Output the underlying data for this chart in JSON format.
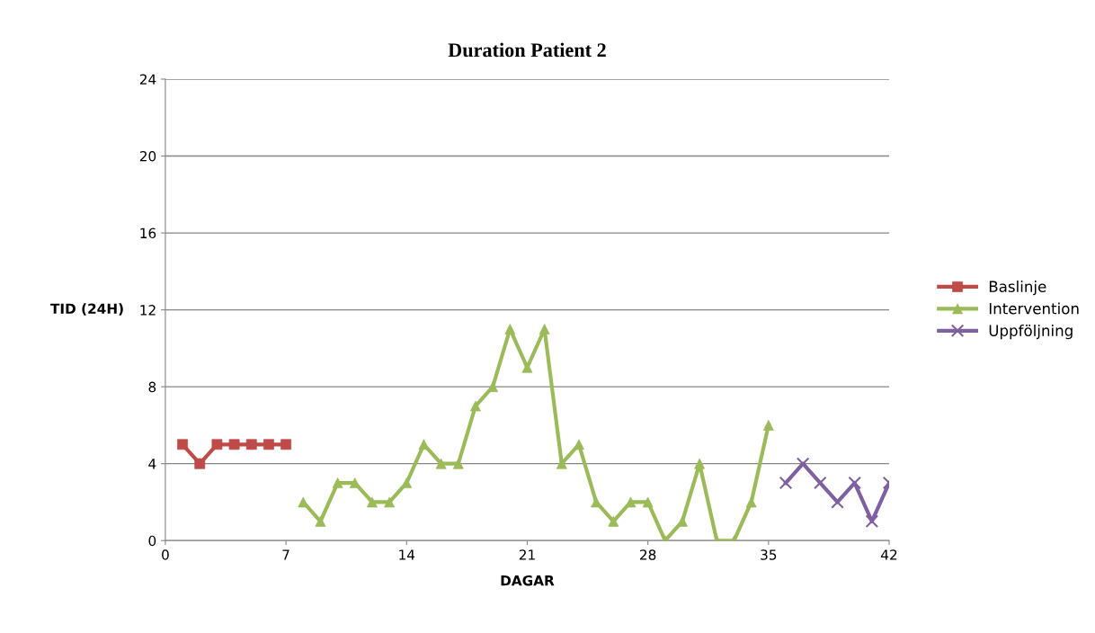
{
  "chart_data": {
    "type": "line",
    "title": "Duration Patient 2",
    "xlabel": "DAGAR",
    "ylabel": "TID (24H)",
    "xlim": [
      0,
      42
    ],
    "xticks": [
      0,
      7,
      14,
      21,
      28,
      35,
      42
    ],
    "ylim": [
      0,
      24
    ],
    "yticks": [
      0,
      4,
      8,
      12,
      16,
      20,
      24
    ],
    "grid": "y",
    "legend": "right",
    "series": [
      {
        "name": "Baslinje",
        "color": "#be4b48",
        "marker": "square",
        "x": [
          1,
          2,
          3,
          4,
          5,
          6,
          7
        ],
        "values": [
          5,
          4,
          5,
          5,
          5,
          5,
          5
        ]
      },
      {
        "name": "Intervention",
        "color": "#9bbb59",
        "marker": "triangle",
        "x": [
          8,
          9,
          10,
          11,
          12,
          13,
          14,
          15,
          16,
          17,
          18,
          19,
          20,
          21,
          22,
          23,
          24,
          25,
          26,
          27,
          28,
          29,
          30,
          31,
          32,
          33,
          34,
          35
        ],
        "values": [
          2,
          1,
          3,
          3,
          2,
          2,
          3,
          5,
          4,
          4,
          7,
          8,
          11,
          9,
          11,
          4,
          5,
          2,
          1,
          2,
          2,
          0,
          1,
          4,
          0,
          0,
          2,
          6
        ]
      },
      {
        "name": "Uppföljning",
        "color": "#7f60a0",
        "marker": "cross",
        "x": [
          36,
          37,
          38,
          39,
          40,
          41,
          42
        ],
        "values": [
          3,
          4,
          3,
          2,
          3,
          1,
          3
        ]
      }
    ]
  }
}
